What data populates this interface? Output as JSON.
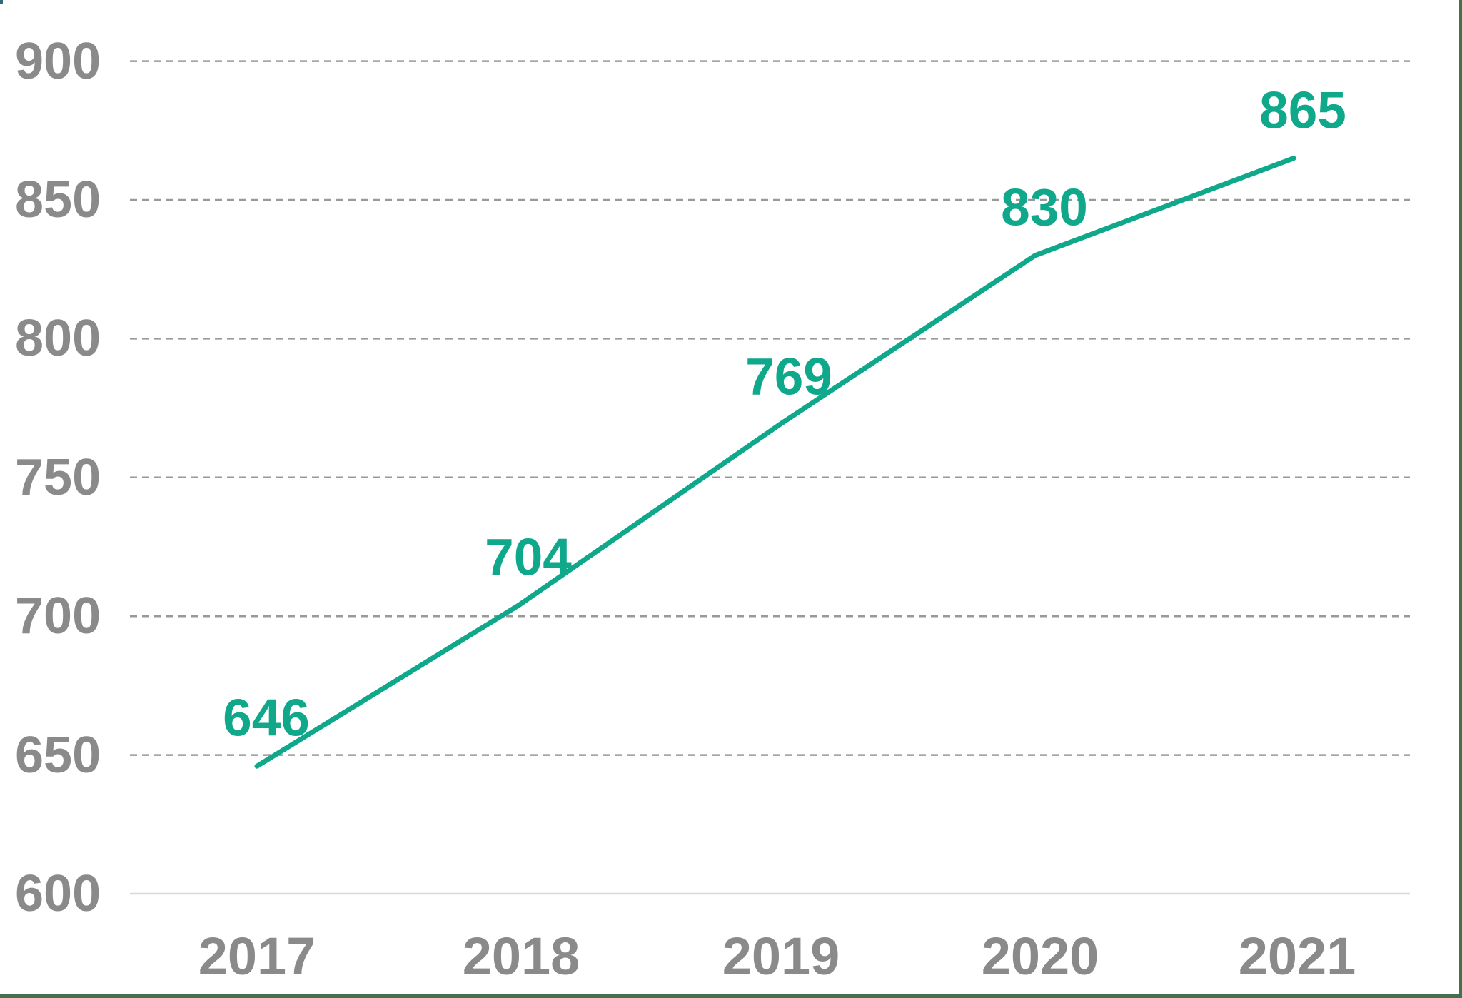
{
  "chart_data": {
    "type": "line",
    "title": "",
    "xlabel": "",
    "ylabel": "",
    "categories": [
      "2017",
      "2018",
      "2019",
      "2020",
      "2021"
    ],
    "series": [
      {
        "name": "series-1",
        "values": [
          646,
          704,
          769,
          830,
          865
        ]
      }
    ],
    "point_labels": [
      "646",
      "704",
      "769",
      "830",
      "865"
    ],
    "y_ticks": [
      "900",
      "850",
      "800",
      "750",
      "700",
      "650",
      "600"
    ],
    "y_tick_values": [
      900,
      850,
      800,
      750,
      700,
      650,
      600
    ],
    "ylim": [
      600,
      915
    ],
    "grid": "horizontal, dashed (solid light line at 600)",
    "legend": "none",
    "colors": {
      "line": "#0FA88A",
      "point_label": "#0FA88A",
      "axis_text": "#8A8A8A",
      "gridline_dashed": "#999999",
      "gridline_solid_600": "#D9D9D9",
      "frame_border_green": "#45704E",
      "corner_artifact_teal": "#2C6B77",
      "background": "#FFFFFF"
    }
  }
}
